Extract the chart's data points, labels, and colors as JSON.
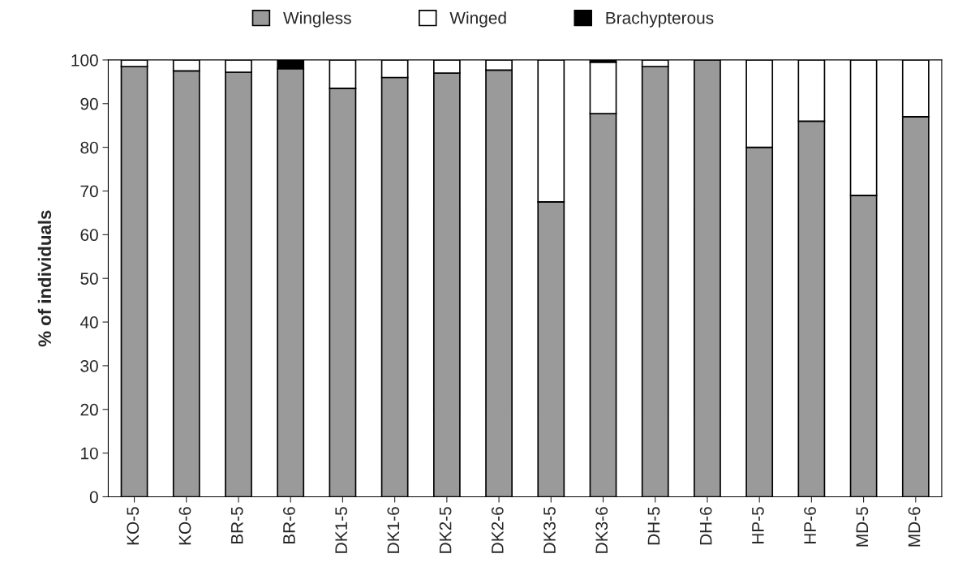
{
  "chart_data": {
    "type": "bar",
    "stacked": true,
    "ylabel": "% of individuals",
    "categories": [
      "KO-5",
      "KO-6",
      "BR-5",
      "BR-6",
      "DK1-5",
      "DK1-6",
      "DK2-5",
      "DK2-6",
      "DK3-5",
      "DK3-6",
      "DH-5",
      "DH-6",
      "HP-5",
      "HP-6",
      "MD-5",
      "MD-6"
    ],
    "series": [
      {
        "name": "Wingless",
        "color": "#9a9a9a",
        "values": [
          98.5,
          97.5,
          97.2,
          98,
          93.5,
          96,
          97,
          97.7,
          67.5,
          87.7,
          98.5,
          100,
          80,
          86,
          69,
          87
        ]
      },
      {
        "name": "Winged",
        "color": "#ffffff",
        "values": [
          1.5,
          2.5,
          2.8,
          0,
          6.5,
          4,
          3,
          2.3,
          32.5,
          11.8,
          1.5,
          0,
          20,
          14,
          31,
          13
        ]
      },
      {
        "name": "Brachypterous",
        "color": "#000000",
        "values": [
          0,
          0,
          0,
          2,
          0,
          0,
          0,
          0,
          0,
          0.5,
          0,
          0,
          0,
          0,
          0,
          0
        ]
      }
    ],
    "ylim": [
      0,
      100
    ],
    "yticks": [
      0,
      10,
      20,
      30,
      40,
      50,
      60,
      70,
      80,
      90,
      100
    ],
    "legend": "top",
    "grid": false
  }
}
